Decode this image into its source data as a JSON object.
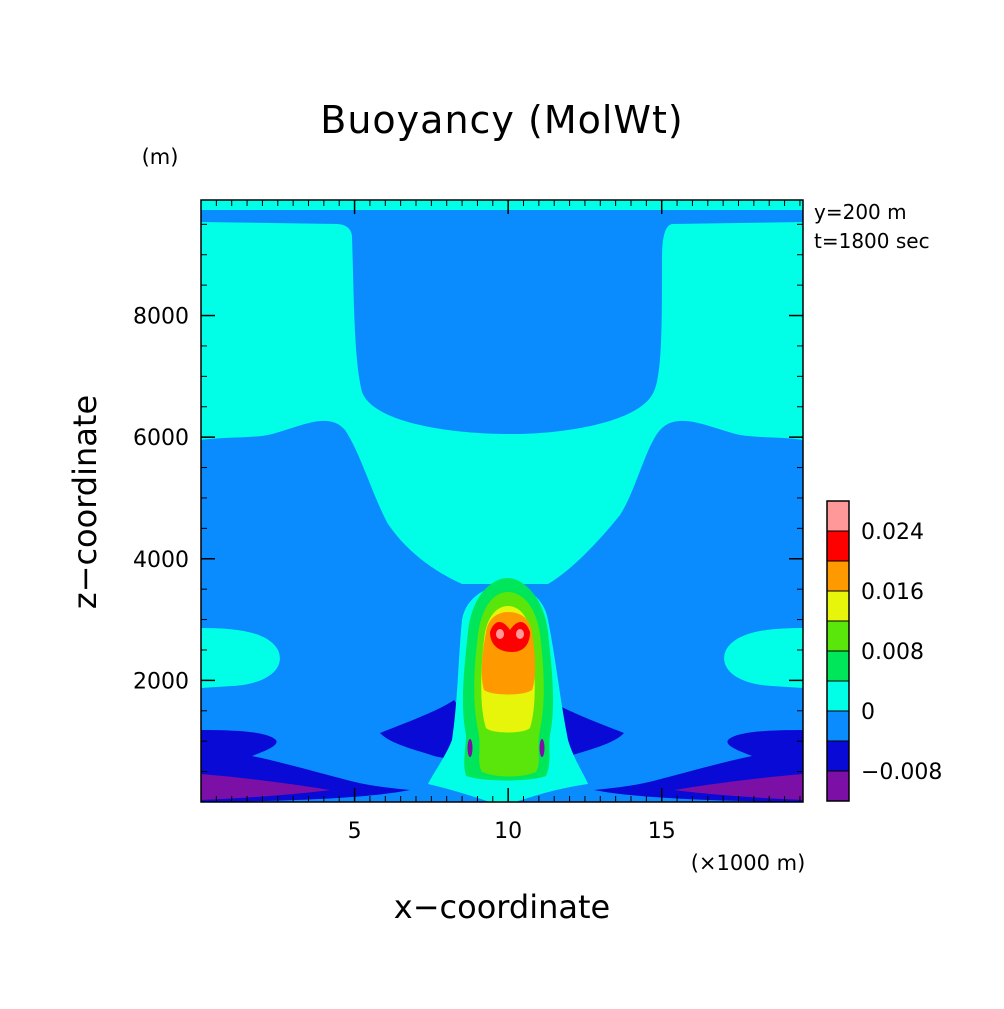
{
  "chart_data": {
    "type": "contour",
    "title": "Buoyancy (MolWt)",
    "xlabel": "x−coordinate",
    "xunit": "(×1000 m)",
    "ylabel": "z−coordinate",
    "yunit": "(m)",
    "annotations": [
      "y=200 m",
      "t=1800 sec"
    ],
    "xlim": [
      0,
      19.6
    ],
    "ylim": [
      0,
      9900
    ],
    "xticks": [
      {
        "value": 5,
        "label": "5"
      },
      {
        "value": 10,
        "label": "10"
      },
      {
        "value": 15,
        "label": "15"
      }
    ],
    "yticks": [
      {
        "value": 2000,
        "label": "2000"
      },
      {
        "value": 4000,
        "label": "4000"
      },
      {
        "value": 6000,
        "label": "6000"
      },
      {
        "value": 8000,
        "label": "8000"
      }
    ],
    "colorbar": {
      "levels": [
        -0.012,
        -0.008,
        -0.004,
        0,
        0.004,
        0.008,
        0.012,
        0.016,
        0.02,
        0.024,
        0.028
      ],
      "colors": [
        "#7b0fa6",
        "#0a0ad6",
        "#0a8cff",
        "#00ffe6",
        "#00e65a",
        "#5ae60a",
        "#e6f50a",
        "#ff9900",
        "#ff0000",
        "#ff9999"
      ],
      "ticks": [
        {
          "value": -0.008,
          "label": "−0.008"
        },
        {
          "value": 0,
          "label": "0"
        },
        {
          "value": 0.008,
          "label": "0.008"
        },
        {
          "value": 0.016,
          "label": "0.016"
        },
        {
          "value": 0.024,
          "label": "0.024"
        }
      ]
    },
    "regions": [
      {
        "level": "-0.004..0",
        "color": "#0a8cff",
        "shape": "background"
      },
      {
        "level": "0..0.004",
        "color": "#00ffe6",
        "shape": "thin band near model top",
        "x": [
          0,
          19.6
        ],
        "z": [
          9650,
          9900
        ]
      },
      {
        "level": "0..0.004",
        "color": "#00ffe6",
        "shape": "central funnel (cloud halo) widening upward",
        "x": [
          6,
          14
        ],
        "z": [
          3200,
          6200
        ]
      },
      {
        "level": "0..0.004",
        "color": "#00ffe6",
        "shape": "upper side plateaus",
        "x": [
          0,
          5,
          14.6,
          19.6
        ],
        "z": [
          6000,
          9600
        ]
      },
      {
        "level": "0..0.004",
        "color": "#00ffe6",
        "shape": "side lobes",
        "x": [
          0,
          2.5,
          17.1,
          19.6
        ],
        "z": [
          1900,
          2900
        ]
      },
      {
        "level": "-0.008..-0.004",
        "color": "#0a0ad6",
        "shape": "low-level outflow layers and downdraft wings",
        "z": [
          0,
          1400
        ]
      },
      {
        "level": "-0.012..-0.008",
        "color": "#7b0fa6",
        "shape": "near-surface pool at lateral edges",
        "x": [
          0,
          4,
          15.6,
          19.6
        ],
        "z": [
          0,
          500
        ]
      },
      {
        "level": "0.004..0.012",
        "color": "#5ae60a",
        "shape": "core of rising thermal",
        "x": [
          8.6,
          11.6
        ],
        "z": [
          400,
          3750
        ]
      },
      {
        "level": "0.012..0.016",
        "color": "#e6f50a",
        "shape": "inner core",
        "x": [
          9.3,
          11
        ],
        "z": [
          1400,
          3150
        ]
      },
      {
        "level": "0.016..0.020",
        "color": "#ff9900",
        "shape": "upper core",
        "x": [
          9.5,
          10.9
        ],
        "z": [
          1800,
          3000
        ]
      },
      {
        "level": "0.020..0.024",
        "color": "#ff0000",
        "shape": "maximum cap",
        "x": [
          9.5,
          10.6
        ],
        "z": [
          2450,
          2900
        ]
      }
    ]
  }
}
